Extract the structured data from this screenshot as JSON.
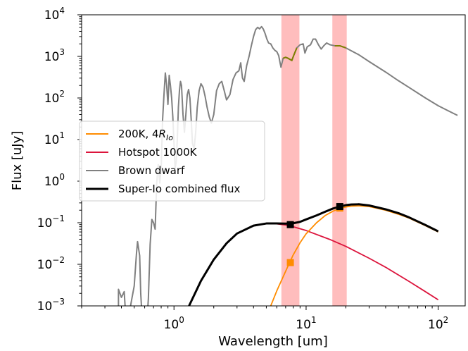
{
  "chart_data": {
    "type": "line",
    "title": "",
    "xlabel": "Wavelength [um]",
    "ylabel": "Flux [uJy]",
    "x_scale": "log",
    "y_scale": "log",
    "xlim": [
      0.2,
      160
    ],
    "ylim": [
      0.001,
      10000
    ],
    "x_ticks": [
      {
        "value": 1,
        "base": "10",
        "exp": "0"
      },
      {
        "value": 10,
        "base": "10",
        "exp": "1"
      },
      {
        "value": 100,
        "base": "10",
        "exp": "2"
      }
    ],
    "y_ticks": [
      {
        "value": 0.001,
        "base": "10",
        "exp": "−3"
      },
      {
        "value": 0.01,
        "base": "10",
        "exp": "−2"
      },
      {
        "value": 0.1,
        "base": "10",
        "exp": "−1"
      },
      {
        "value": 1,
        "base": "10",
        "exp": "0"
      },
      {
        "value": 10,
        "base": "10",
        "exp": "1"
      },
      {
        "value": 100,
        "base": "10",
        "exp": "2"
      },
      {
        "value": 1000,
        "base": "10",
        "exp": "3"
      },
      {
        "value": 10000,
        "base": "10",
        "exp": "4"
      }
    ],
    "grid": false,
    "legend_position": "center-left",
    "bands": [
      {
        "xmin": 6.5,
        "xmax": 8.9,
        "color": "#ff9999"
      },
      {
        "xmin": 15.8,
        "xmax": 20.3,
        "color": "#ff9999"
      }
    ],
    "series": [
      {
        "name": "Brown dwarf",
        "color": "#808080",
        "points": [
          [
            0.38,
            0.0005
          ],
          [
            0.38,
            0.0025
          ],
          [
            0.4,
            0.0016
          ],
          [
            0.42,
            0.0022
          ],
          [
            0.44,
            0.0002
          ],
          [
            0.46,
            0.0007
          ],
          [
            0.48,
            0.0015
          ],
          [
            0.5,
            0.003
          ],
          [
            0.52,
            0.018
          ],
          [
            0.53,
            0.035
          ],
          [
            0.55,
            0.016
          ],
          [
            0.56,
            0.002
          ],
          [
            0.58,
            0.0003
          ],
          [
            0.6,
            0.0008
          ],
          [
            0.62,
            0.0003
          ],
          [
            0.64,
            0.0015
          ],
          [
            0.66,
            0.03
          ],
          [
            0.68,
            0.12
          ],
          [
            0.7,
            0.1
          ],
          [
            0.72,
            0.07
          ],
          [
            0.74,
            0.9
          ],
          [
            0.76,
            2.5
          ],
          [
            0.78,
            0.9
          ],
          [
            0.8,
            2.0
          ],
          [
            0.82,
            30
          ],
          [
            0.84,
            120
          ],
          [
            0.86,
            400
          ],
          [
            0.88,
            200
          ],
          [
            0.9,
            70
          ],
          [
            0.92,
            350
          ],
          [
            0.94,
            200
          ],
          [
            0.96,
            100
          ],
          [
            0.98,
            35
          ],
          [
            1.0,
            8
          ],
          [
            1.02,
            2
          ],
          [
            1.04,
            3
          ],
          [
            1.06,
            10
          ],
          [
            1.08,
            60
          ],
          [
            1.1,
            150
          ],
          [
            1.12,
            250
          ],
          [
            1.14,
            200
          ],
          [
            1.17,
            40
          ],
          [
            1.2,
            15
          ],
          [
            1.23,
            40
          ],
          [
            1.26,
            120
          ],
          [
            1.29,
            160
          ],
          [
            1.32,
            100
          ],
          [
            1.35,
            30
          ],
          [
            1.38,
            8
          ],
          [
            1.42,
            6
          ],
          [
            1.46,
            15
          ],
          [
            1.5,
            60
          ],
          [
            1.55,
            150
          ],
          [
            1.6,
            220
          ],
          [
            1.66,
            180
          ],
          [
            1.72,
            110
          ],
          [
            1.78,
            60
          ],
          [
            1.85,
            35
          ],
          [
            1.92,
            25
          ],
          [
            2.0,
            40
          ],
          [
            2.1,
            150
          ],
          [
            2.2,
            220
          ],
          [
            2.3,
            250
          ],
          [
            2.4,
            150
          ],
          [
            2.5,
            90
          ],
          [
            2.65,
            120
          ],
          [
            2.8,
            280
          ],
          [
            2.95,
            400
          ],
          [
            3.1,
            450
          ],
          [
            3.2,
            700
          ],
          [
            3.3,
            300
          ],
          [
            3.4,
            250
          ],
          [
            3.55,
            600
          ],
          [
            3.7,
            1000
          ],
          [
            3.85,
            1800
          ],
          [
            4.0,
            3000
          ],
          [
            4.15,
            4400
          ],
          [
            4.3,
            5000
          ],
          [
            4.45,
            4600
          ],
          [
            4.6,
            5200
          ],
          [
            4.75,
            4500
          ],
          [
            4.9,
            3500
          ],
          [
            5.05,
            2600
          ],
          [
            5.2,
            2100
          ],
          [
            5.4,
            2000
          ],
          [
            5.6,
            1600
          ],
          [
            5.8,
            1400
          ],
          [
            6.0,
            1300
          ],
          [
            6.2,
            1050
          ],
          [
            6.45,
            550
          ],
          [
            6.7,
            900
          ],
          [
            7.0,
            950
          ],
          [
            7.3,
            900
          ],
          [
            7.8,
            800
          ],
          [
            8.1,
            1100
          ],
          [
            8.5,
            1600
          ],
          [
            9.0,
            1900
          ],
          [
            9.5,
            2000
          ],
          [
            9.8,
            1200
          ],
          [
            10.2,
            1700
          ],
          [
            10.8,
            1900
          ],
          [
            11.3,
            2600
          ],
          [
            11.8,
            2600
          ],
          [
            12.4,
            1900
          ],
          [
            13.0,
            1500
          ],
          [
            13.6,
            1800
          ],
          [
            14.3,
            2100
          ],
          [
            15.2,
            1900
          ],
          [
            16.5,
            1800
          ],
          [
            18.0,
            1800
          ],
          [
            20.0,
            1600
          ],
          [
            25.0,
            1100
          ],
          [
            30.0,
            750
          ],
          [
            40.0,
            420
          ],
          [
            50.0,
            260
          ],
          [
            60.0,
            180
          ],
          [
            80.0,
            100
          ],
          [
            100.0,
            65
          ],
          [
            140.0,
            38
          ]
        ]
      },
      {
        "name": "Hotspot 1000K",
        "color": "#dc143c",
        "points": [
          [
            1.3,
            0.001
          ],
          [
            1.6,
            0.004
          ],
          [
            2,
            0.013
          ],
          [
            2.5,
            0.032
          ],
          [
            3,
            0.055
          ],
          [
            4,
            0.085
          ],
          [
            5,
            0.095
          ],
          [
            6,
            0.094
          ],
          [
            7,
            0.088
          ],
          [
            8,
            0.08
          ],
          [
            10,
            0.065
          ],
          [
            15,
            0.04
          ],
          [
            20,
            0.027
          ],
          [
            30,
            0.014
          ],
          [
            40,
            0.0085
          ],
          [
            60,
            0.0039
          ],
          [
            80,
            0.0022
          ],
          [
            100,
            0.0014
          ]
        ]
      },
      {
        "name": "200K, 4R_Io",
        "color": "#ff8c00",
        "points": [
          [
            5.4,
            0.001
          ],
          [
            6,
            0.0023
          ],
          [
            7,
            0.0068
          ],
          [
            7.5,
            0.011
          ],
          [
            8,
            0.017
          ],
          [
            9,
            0.033
          ],
          [
            10,
            0.054
          ],
          [
            12,
            0.1
          ],
          [
            14,
            0.15
          ],
          [
            16,
            0.19
          ],
          [
            18,
            0.22
          ],
          [
            20,
            0.24
          ],
          [
            22,
            0.25
          ],
          [
            25,
            0.255
          ],
          [
            30,
            0.245
          ],
          [
            40,
            0.2
          ],
          [
            50,
            0.16
          ],
          [
            60,
            0.13
          ],
          [
            80,
            0.085
          ],
          [
            100,
            0.06
          ]
        ]
      },
      {
        "name": "Super-Io combined flux",
        "color": "#000000",
        "points": [
          [
            1.3,
            0.001
          ],
          [
            1.6,
            0.004
          ],
          [
            2,
            0.013
          ],
          [
            2.5,
            0.032
          ],
          [
            3,
            0.055
          ],
          [
            4,
            0.085
          ],
          [
            5,
            0.096
          ],
          [
            6,
            0.096
          ],
          [
            7,
            0.095
          ],
          [
            8,
            0.097
          ],
          [
            9,
            0.105
          ],
          [
            10,
            0.12
          ],
          [
            12,
            0.15
          ],
          [
            14,
            0.185
          ],
          [
            16,
            0.22
          ],
          [
            18,
            0.245
          ],
          [
            20,
            0.265
          ],
          [
            22,
            0.275
          ],
          [
            25,
            0.278
          ],
          [
            30,
            0.26
          ],
          [
            40,
            0.21
          ],
          [
            50,
            0.17
          ],
          [
            60,
            0.135
          ],
          [
            80,
            0.088
          ],
          [
            100,
            0.062
          ]
        ]
      }
    ],
    "band_overlay_color": "#808000",
    "markers": [
      {
        "x": 7.6,
        "y": 0.011,
        "color": "#ff8c00"
      },
      {
        "x": 18,
        "y": 0.225,
        "color": "#ff8c00"
      },
      {
        "x": 7.6,
        "y": 0.09,
        "color": "#000000"
      },
      {
        "x": 18,
        "y": 0.245,
        "color": "#000000"
      }
    ],
    "legend": [
      {
        "label": "200K, 4",
        "label_math_base": "R",
        "label_math_sub": "Io",
        "color": "#ff8c00",
        "width": 2
      },
      {
        "label": "Hotspot 1000K",
        "color": "#dc143c",
        "width": 2
      },
      {
        "label": "Brown dwarf",
        "color": "#808080",
        "width": 2
      },
      {
        "label": "Super-Io combined flux",
        "color": "#000000",
        "width": 3
      }
    ]
  }
}
